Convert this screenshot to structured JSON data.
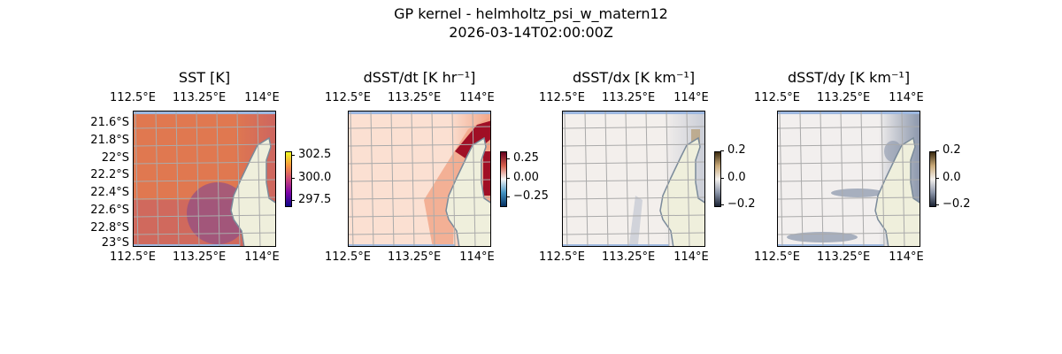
{
  "figure": {
    "title_line1": "GP kernel - helmholtz_psi_w_matern12",
    "title_line2": "2026-03-14T02:00:00Z"
  },
  "chart_data": [
    {
      "type": "heatmap",
      "title": "SST [K]",
      "colormap": "plasma-like",
      "cbar_ticks": [
        "302.5",
        "300.0",
        "297.5"
      ],
      "cbar_range": [
        297,
        303
      ],
      "lon_ticks": [
        "112.5°E",
        "113.25°E",
        "114°E"
      ],
      "lat_ticks": [
        "21.6°S",
        "21.8°S",
        "22°S",
        "22.2°S",
        "22.4°S",
        "22.6°S",
        "22.8°S",
        "23°S"
      ],
      "colors": [
        "#e07850",
        "#cc6560",
        "#8e4f88"
      ]
    },
    {
      "type": "heatmap",
      "title": "dSST/dt [K hr⁻¹]",
      "colormap": "RdBu_r",
      "cbar_ticks": [
        "0.25",
        "0.00",
        "−0.25"
      ],
      "cbar_range": [
        -0.35,
        0.35
      ],
      "lon_ticks": [
        "112.5°E",
        "113.25°E",
        "114°E"
      ],
      "colors": [
        "#fbe0d2",
        "#f1a486",
        "#a00f25"
      ]
    },
    {
      "type": "heatmap",
      "title": "dSST/dx [K km⁻¹]",
      "colormap": "diverging-gray",
      "cbar_ticks": [
        "0.2",
        "0.0",
        "−0.2"
      ],
      "cbar_range": [
        -0.2,
        0.2
      ],
      "lon_ticks": [
        "112.5°E",
        "113.25°E",
        "114°E"
      ],
      "colors": [
        "#f3efec",
        "#c8ccd6",
        "#b49a70"
      ]
    },
    {
      "type": "heatmap",
      "title": "dSST/dy [K km⁻¹]",
      "colormap": "diverging-gray",
      "cbar_ticks": [
        "0.2",
        "0.0",
        "−0.2"
      ],
      "cbar_range": [
        -0.2,
        0.2
      ],
      "lon_ticks": [
        "112.5°E",
        "113.25°E",
        "114°E"
      ],
      "colors": [
        "#f2efee",
        "#8894aa",
        "#c9cdd7"
      ]
    }
  ]
}
